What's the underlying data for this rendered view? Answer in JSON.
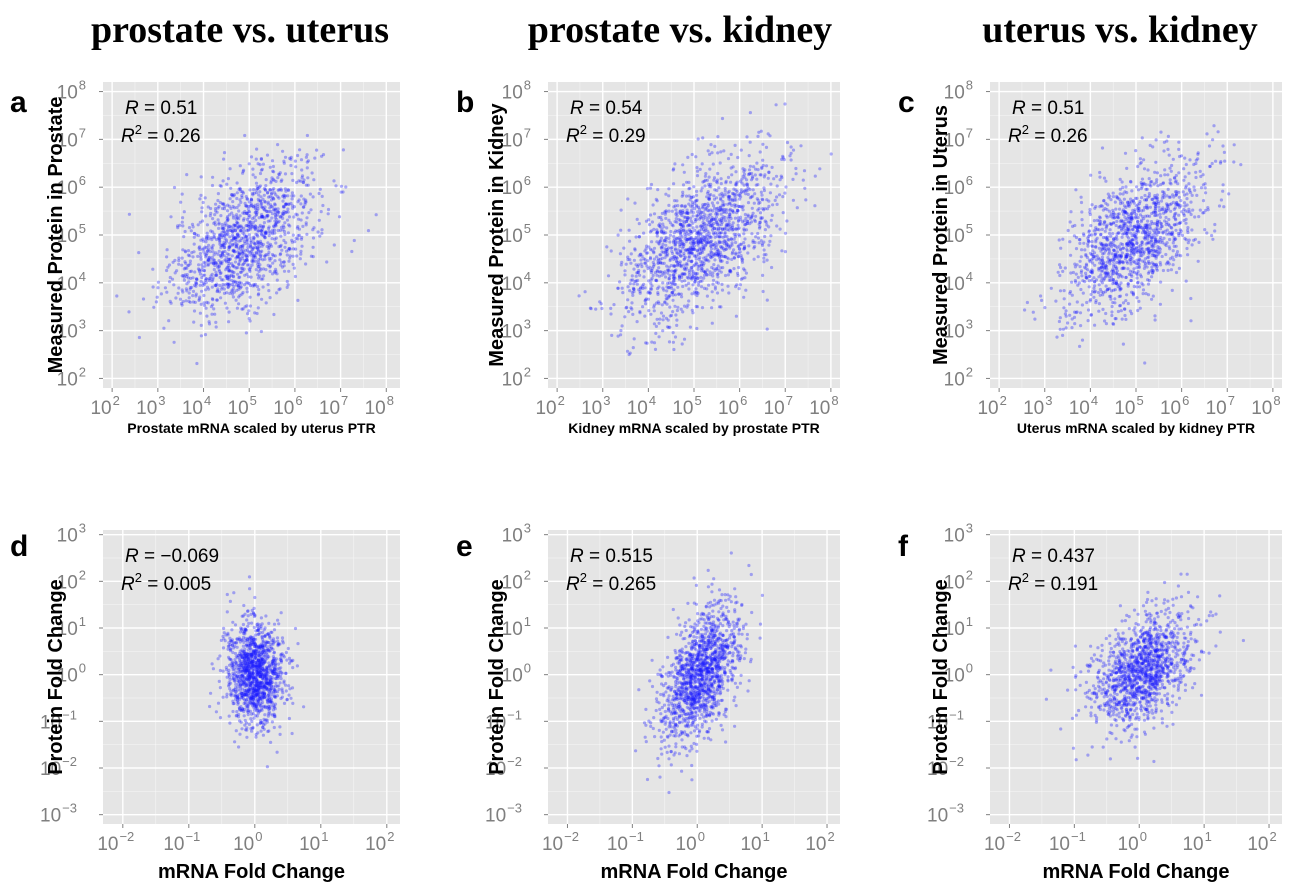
{
  "column_titles": [
    "prostate vs. uterus",
    "prostate vs. kidney",
    "uterus vs. kidney"
  ],
  "chart_data": [
    {
      "type": "scatter",
      "panel": "a",
      "xlabel": "Prostate mRNA scaled by uterus PTR",
      "ylabel": "Measured Protein in Prostate",
      "log_scale": true,
      "xlim_log10": [
        1.8,
        8.3
      ],
      "ylim_log10": [
        1.8,
        8.2
      ],
      "x_ticks": [
        2,
        3,
        4,
        5,
        6,
        7,
        8
      ],
      "y_ticks": [
        2,
        3,
        4,
        5,
        6,
        7,
        8
      ],
      "R": "0.51",
      "R2": "0.26",
      "grid": true,
      "cloud": {
        "center_log10": [
          4.9,
          4.9
        ],
        "sd_log10": [
          0.8,
          0.8
        ],
        "correlation": 0.51,
        "n_points": 1300
      }
    },
    {
      "type": "scatter",
      "panel": "b",
      "xlabel": "Kidney mRNA scaled by prostate PTR",
      "ylabel": "Measured Protein in Kidney",
      "log_scale": true,
      "xlim_log10": [
        1.8,
        8.2
      ],
      "ylim_log10": [
        1.8,
        8.2
      ],
      "x_ticks": [
        2,
        3,
        4,
        5,
        6,
        7,
        8
      ],
      "y_ticks": [
        2,
        3,
        4,
        5,
        6,
        7,
        8
      ],
      "R": "0.54",
      "R2": "0.29",
      "grid": true,
      "cloud": {
        "center_log10": [
          5.1,
          4.9
        ],
        "sd_log10": [
          0.85,
          0.85
        ],
        "correlation": 0.54,
        "n_points": 1500
      }
    },
    {
      "type": "scatter",
      "panel": "c",
      "xlabel": "Uterus mRNA scaled by kidney PTR",
      "ylabel": "Measured Protein in Uterus",
      "log_scale": true,
      "xlim_log10": [
        1.8,
        8.2
      ],
      "ylim_log10": [
        1.8,
        8.2
      ],
      "x_ticks": [
        2,
        3,
        4,
        5,
        6,
        7,
        8
      ],
      "y_ticks": [
        2,
        3,
        4,
        5,
        6,
        7,
        8
      ],
      "R": "0.51",
      "R2": "0.26",
      "grid": true,
      "cloud": {
        "center_log10": [
          4.9,
          4.9
        ],
        "sd_log10": [
          0.75,
          0.8
        ],
        "correlation": 0.51,
        "n_points": 1300
      }
    },
    {
      "type": "scatter",
      "panel": "d",
      "xlabel": "mRNA Fold Change",
      "ylabel": "Protein Fold Change",
      "log_scale": true,
      "xlim_log10": [
        -2.3,
        2.2
      ],
      "ylim_log10": [
        -3.2,
        3.1
      ],
      "x_ticks": [
        -2,
        -1,
        0,
        1,
        2
      ],
      "y_ticks": [
        -3,
        -2,
        -1,
        0,
        1,
        2,
        3
      ],
      "R": "−0.069",
      "R2": "0.005",
      "grid": true,
      "cloud": {
        "center_log10": [
          0.0,
          0.0
        ],
        "sd_log10": [
          0.22,
          0.55
        ],
        "correlation": -0.069,
        "n_points": 1300
      }
    },
    {
      "type": "scatter",
      "panel": "e",
      "xlabel": "mRNA Fold Change",
      "ylabel": "Protein Fold Change",
      "log_scale": true,
      "xlim_log10": [
        -2.3,
        2.2
      ],
      "ylim_log10": [
        -3.2,
        3.1
      ],
      "x_ticks": [
        -2,
        -1,
        0,
        1,
        2
      ],
      "y_ticks": [
        -3,
        -2,
        -1,
        0,
        1,
        2,
        3
      ],
      "R": "0.515",
      "R2": "0.265",
      "grid": true,
      "cloud": {
        "center_log10": [
          0.05,
          0.0
        ],
        "sd_log10": [
          0.3,
          0.75
        ],
        "correlation": 0.515,
        "n_points": 1400
      }
    },
    {
      "type": "scatter",
      "panel": "f",
      "xlabel": "mRNA Fold Change",
      "ylabel": "Protein Fold Change",
      "log_scale": true,
      "xlim_log10": [
        -2.3,
        2.2
      ],
      "ylim_log10": [
        -3.2,
        3.1
      ],
      "x_ticks": [
        -2,
        -1,
        0,
        1,
        2
      ],
      "y_ticks": [
        -3,
        -2,
        -1,
        0,
        1,
        2,
        3
      ],
      "R": "0.437",
      "R2": "0.191",
      "grid": true,
      "cloud": {
        "center_log10": [
          0.05,
          0.1
        ],
        "sd_log10": [
          0.4,
          0.6
        ],
        "correlation": 0.437,
        "n_points": 1300
      }
    }
  ],
  "colors": {
    "panel_bg": "#e5e5e5",
    "grid": "#ffffff",
    "points": "#1a1aff",
    "tick_text": "#7f7f7f"
  }
}
